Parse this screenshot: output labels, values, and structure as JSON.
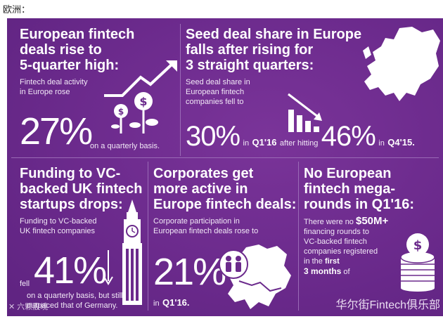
{
  "caption": "欧洲：",
  "p1": {
    "headline": [
      "European fintech",
      "deals rise to",
      "5-quarter high:"
    ],
    "body": [
      "Fintech deal activity",
      "in Europe rose"
    ],
    "big": "27%",
    "tail": "on a quarterly basis."
  },
  "p2": {
    "headline": [
      "Seed deal share in Europe",
      "falls after rising for",
      "3 straight quarters:"
    ],
    "body": [
      "Seed deal share in",
      "European fintech",
      "companies fell to"
    ],
    "num_a": "30%",
    "in_a": "in",
    "q_a": "Q1'16",
    "after": "after hitting",
    "num_b": "46%",
    "in_b": "in",
    "q_b": "Q4'15."
  },
  "p3": {
    "headline": [
      "Funding to VC-",
      "backed UK fintech",
      "startups drops:"
    ],
    "body": [
      "Funding to VC-backed",
      "UK fintech companies"
    ],
    "fell": "fell",
    "big": "41%",
    "tail": [
      "on a quarterly basis, but still",
      "outpaced that of Germany."
    ]
  },
  "p4": {
    "headline": [
      "Corporates get",
      "more active in",
      "Europe fintech deals:"
    ],
    "body": [
      "Corporate participation in",
      "European fintech deals rose to"
    ],
    "big": "21%",
    "in": "in",
    "q": "Q1'16."
  },
  "p5": {
    "headline": [
      "No European",
      "fintech mega-",
      "rounds in Q1'16:"
    ],
    "body_pre": "There were no",
    "amount": "$50M+",
    "body": [
      "financing rounds to",
      "VC-backed fintech",
      "companies registered",
      "in the"
    ],
    "first": "first",
    "months": "3 months",
    "of": "of"
  },
  "watermark_left": "✕ 六颗骰境",
  "watermark_right": "华尔街Fintech俱乐部",
  "colors": {
    "background": "#6b2a8c",
    "divider": "#9a6ab6"
  }
}
